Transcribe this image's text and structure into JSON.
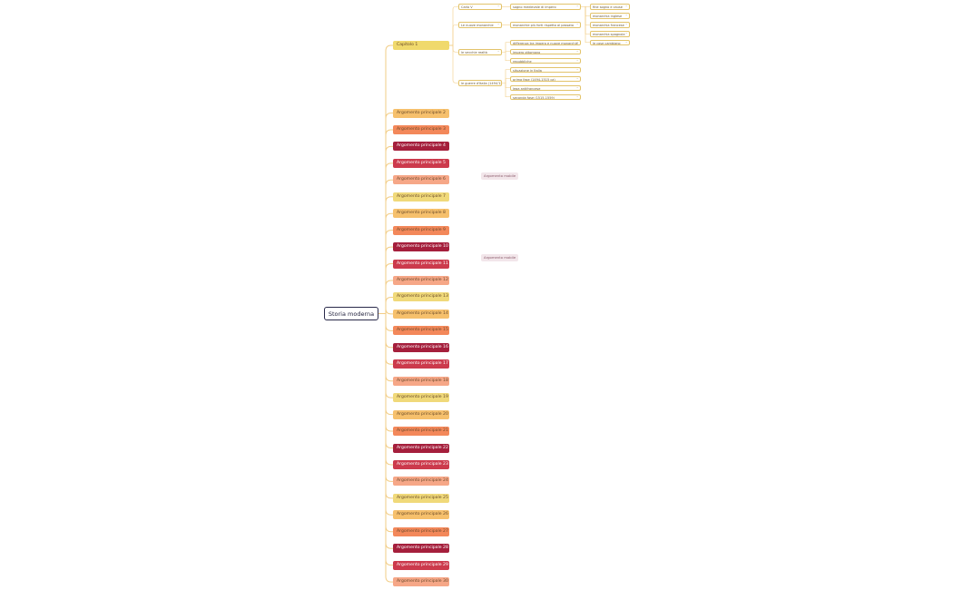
{
  "root": {
    "label": "Storia moderna"
  },
  "chapter": {
    "label": "Capitolo 1",
    "children": [
      {
        "label": "Carlo V",
        "children": [
          {
            "label": "sogno medievale di impero",
            "children": [
              {
                "label": "fine sogno e cause"
              },
              {
                "label": "monarchia inglese"
              },
              {
                "label": "monarchia francese"
              },
              {
                "label": "monarchia spagnola"
              },
              {
                "label": "le cose cambiano"
              }
            ]
          }
        ]
      },
      {
        "label": "Le nuove monarchie",
        "children": [
          {
            "label": "monarchie più forti rispetto al passato"
          }
        ]
      },
      {
        "label": "le vecchie realtà",
        "children": [
          {
            "label": "differenza tra impero e nuove monarchie"
          },
          {
            "label": "impero ottomano"
          },
          {
            "label": "repubbliche"
          }
        ]
      },
      {
        "label": "le guerre d'Italia (1494-1559)",
        "children": [
          {
            "label": "situazione in Italia"
          },
          {
            "label": "prima fase (1494-1515 ca)"
          },
          {
            "label": "lega antifrancese"
          },
          {
            "label": "seconda fase (1515-1559)"
          }
        ]
      }
    ]
  },
  "topics": [
    {
      "label": "Argomento principale 2",
      "color": "#f6c06c"
    },
    {
      "label": "Argomento principale 3",
      "color": "#f3885a"
    },
    {
      "label": "Argomento principale 4",
      "color": "#a51f3c"
    },
    {
      "label": "Argomento principale 5",
      "color": "#cc3a4c"
    },
    {
      "label": "Argomento principale 6",
      "color": "#f6a787"
    },
    {
      "label": "Argomento principale 7",
      "color": "#f0d97a"
    },
    {
      "label": "Argomento principale 8",
      "color": "#f6c06c"
    },
    {
      "label": "Argomento principale 9",
      "color": "#f3885a"
    },
    {
      "label": "Argomento principale 10",
      "color": "#a51f3c"
    },
    {
      "label": "Argomento principale 11",
      "color": "#cc3a4c"
    },
    {
      "label": "Argomento principale 12",
      "color": "#f6a787"
    },
    {
      "label": "Argomento principale 13",
      "color": "#f0d97a"
    },
    {
      "label": "Argomento principale 14",
      "color": "#f6c06c"
    },
    {
      "label": "Argomento principale 15",
      "color": "#f3885a"
    },
    {
      "label": "Argomento principale 16",
      "color": "#a51f3c"
    },
    {
      "label": "Argomento principale 17",
      "color": "#cc3a4c"
    },
    {
      "label": "Argomento principale 18",
      "color": "#f6a787"
    },
    {
      "label": "Argomento principale 19",
      "color": "#f0d97a"
    },
    {
      "label": "Argomento principale 20",
      "color": "#f6c06c"
    },
    {
      "label": "Argomento principale 21",
      "color": "#f3885a"
    },
    {
      "label": "Argomento principale 22",
      "color": "#a51f3c"
    },
    {
      "label": "Argomento principale 23",
      "color": "#cc3a4c"
    },
    {
      "label": "Argomento principale 24",
      "color": "#f6a787"
    },
    {
      "label": "Argomento principale 25",
      "color": "#f0d97a"
    },
    {
      "label": "Argomento principale 26",
      "color": "#f6c06c"
    },
    {
      "label": "Argomento principale 27",
      "color": "#f3885a"
    },
    {
      "label": "Argomento principale 28",
      "color": "#a51f3c"
    },
    {
      "label": "Argomento principale 29",
      "color": "#cc3a4c"
    },
    {
      "label": "Argomento principale 30",
      "color": "#f6a787"
    }
  ],
  "floating": [
    {
      "label": "Argomento mobile"
    },
    {
      "label": "Argomento mobile"
    }
  ],
  "colors": {
    "chapter": "#f0d96c",
    "line": "#f2cd86",
    "root_border": "#2a2a4a"
  },
  "icons": {
    "expand": "chevron-down-icon"
  }
}
